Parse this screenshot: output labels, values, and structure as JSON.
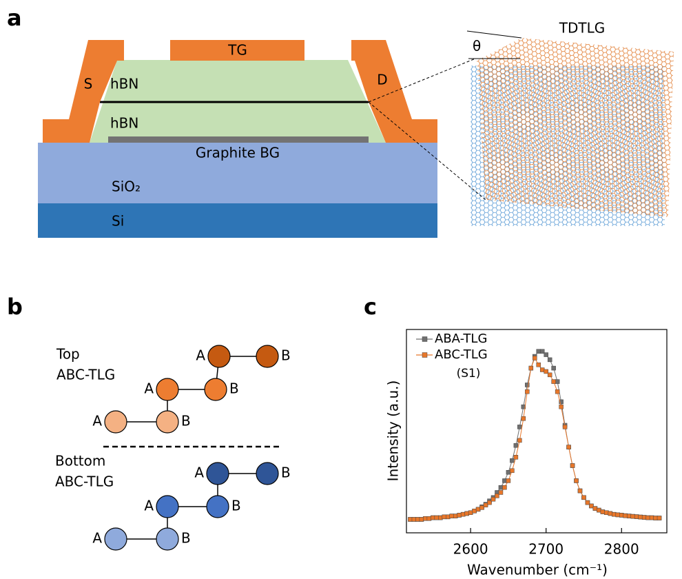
{
  "panels": [
    "a",
    "b",
    "c"
  ],
  "device": {
    "top_gate": "TG",
    "source": "S",
    "drain": "D",
    "hbn_top": "hBN",
    "hbn_bottom": "hBN",
    "back_gate": "Graphite BG",
    "oxide": "SiO₂",
    "substrate": "Si"
  },
  "moire": {
    "label": "TDTLG",
    "angle": "θ"
  },
  "stacking": {
    "top_label": [
      "Top",
      "ABC-TLG"
    ],
    "bottom_label": [
      "Bottom",
      "ABC-TLG"
    ],
    "site_a": "A",
    "site_b": "B"
  },
  "chart_data": {
    "type": "line",
    "x_label": "Wavenumber (cm⁻¹)",
    "y_label": "Intensity (a.u.)",
    "legend_note": "(S1)",
    "xlim": [
      2515,
      2860
    ],
    "ylim": [
      -0.08,
      1.13
    ],
    "xticks": [
      2600,
      2700,
      2800
    ],
    "x": [
      2520,
      2525,
      2530,
      2535,
      2540,
      2545,
      2550,
      2555,
      2560,
      2565,
      2570,
      2575,
      2580,
      2585,
      2590,
      2595,
      2600,
      2605,
      2610,
      2615,
      2620,
      2625,
      2630,
      2635,
      2640,
      2645,
      2650,
      2655,
      2660,
      2665,
      2670,
      2675,
      2680,
      2685,
      2690,
      2695,
      2700,
      2705,
      2710,
      2715,
      2720,
      2725,
      2730,
      2735,
      2740,
      2745,
      2750,
      2755,
      2760,
      2765,
      2770,
      2775,
      2780,
      2785,
      2790,
      2795,
      2800,
      2805,
      2810,
      2815,
      2820,
      2825,
      2830,
      2835,
      2840,
      2845,
      2850
    ],
    "series": [
      {
        "name": "ABA-TLG",
        "color": "#6f6f6f",
        "values": [
          0,
          0,
          0,
          0,
          0.005,
          0.005,
          0.01,
          0.01,
          0.01,
          0.015,
          0.015,
          0.02,
          0.02,
          0.025,
          0.03,
          0.035,
          0.04,
          0.05,
          0.06,
          0.075,
          0.09,
          0.11,
          0.13,
          0.16,
          0.19,
          0.23,
          0.28,
          0.35,
          0.44,
          0.55,
          0.67,
          0.8,
          0.9,
          0.97,
          1,
          1,
          0.98,
          0.95,
          0.9,
          0.82,
          0.7,
          0.56,
          0.43,
          0.32,
          0.23,
          0.17,
          0.13,
          0.1,
          0.08,
          0.065,
          0.055,
          0.045,
          0.04,
          0.035,
          0.03,
          0.027,
          0.025,
          0.022,
          0.02,
          0.018,
          0.016,
          0.014,
          0.012,
          0.01,
          0.01,
          0.008,
          0.008
        ]
      },
      {
        "name": "ABC-TLG",
        "color": "#e8772a",
        "values": [
          0,
          0,
          0,
          0,
          0.005,
          0.005,
          0.01,
          0.01,
          0.01,
          0.015,
          0.015,
          0.02,
          0.02,
          0.025,
          0.03,
          0.035,
          0.04,
          0.05,
          0.06,
          0.07,
          0.085,
          0.1,
          0.12,
          0.14,
          0.16,
          0.19,
          0.23,
          0.29,
          0.37,
          0.47,
          0.6,
          0.76,
          0.9,
          0.96,
          0.92,
          0.89,
          0.88,
          0.86,
          0.82,
          0.76,
          0.67,
          0.55,
          0.43,
          0.32,
          0.23,
          0.17,
          0.13,
          0.1,
          0.08,
          0.065,
          0.055,
          0.045,
          0.04,
          0.035,
          0.03,
          0.027,
          0.025,
          0.022,
          0.02,
          0.018,
          0.016,
          0.014,
          0.012,
          0.01,
          0.01,
          0.008,
          0.008
        ]
      }
    ]
  }
}
